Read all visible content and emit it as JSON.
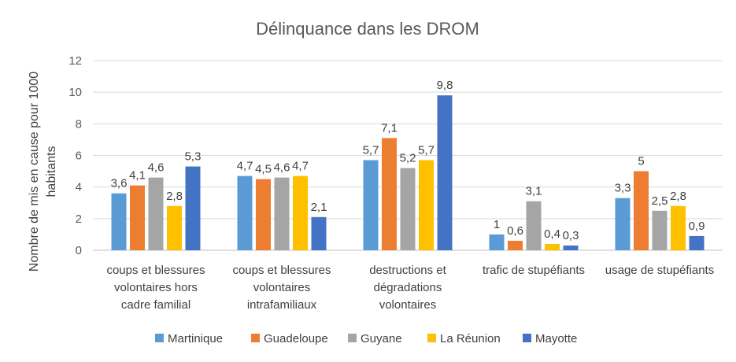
{
  "chart_data": {
    "type": "bar",
    "title": "Délinquance dans les DROM",
    "ylabel": [
      "Nombre de mis en cause pour 1000",
      "habitants"
    ],
    "xlabel": "",
    "ylim": [
      0,
      12
    ],
    "yticks": [
      0,
      2,
      4,
      6,
      8,
      10,
      12
    ],
    "grid": true,
    "legend_position": "bottom",
    "categories": [
      [
        "coups et blessures",
        "volontaires hors",
        "cadre familial"
      ],
      [
        "coups et blessures",
        "volontaires",
        "intrafamiliaux"
      ],
      [
        "destructions et",
        "dégradations",
        "volontaires"
      ],
      [
        "trafic de stupéfiants"
      ],
      [
        "usage de stupéfiants"
      ]
    ],
    "series": [
      {
        "name": "Martinique",
        "color": "#5b9bd5",
        "values": [
          3.6,
          4.7,
          5.7,
          1,
          3.3
        ],
        "labels": [
          "3,6",
          "4,7",
          "5,7",
          "1",
          "3,3"
        ]
      },
      {
        "name": "Guadeloupe",
        "color": "#ed7d31",
        "values": [
          4.1,
          4.5,
          7.1,
          0.6,
          5
        ],
        "labels": [
          "4,1",
          "4,5",
          "7,1",
          "0,6",
          "5"
        ]
      },
      {
        "name": "Guyane",
        "color": "#a5a5a5",
        "values": [
          4.6,
          4.6,
          5.2,
          3.1,
          2.5
        ],
        "labels": [
          "4,6",
          "4,6",
          "5,2",
          "3,1",
          "2,5"
        ]
      },
      {
        "name": "La Réunion",
        "color": "#ffc000",
        "values": [
          2.8,
          4.7,
          5.7,
          0.4,
          2.8
        ],
        "labels": [
          "2,8",
          "4,7",
          "5,7",
          "0,4",
          "2,8"
        ]
      },
      {
        "name": "Mayotte",
        "color": "#4472c4",
        "values": [
          5.3,
          2.1,
          9.8,
          0.3,
          0.9
        ],
        "labels": [
          "5,3",
          "2,1",
          "9,8",
          "0,3",
          "0,9"
        ]
      }
    ]
  }
}
